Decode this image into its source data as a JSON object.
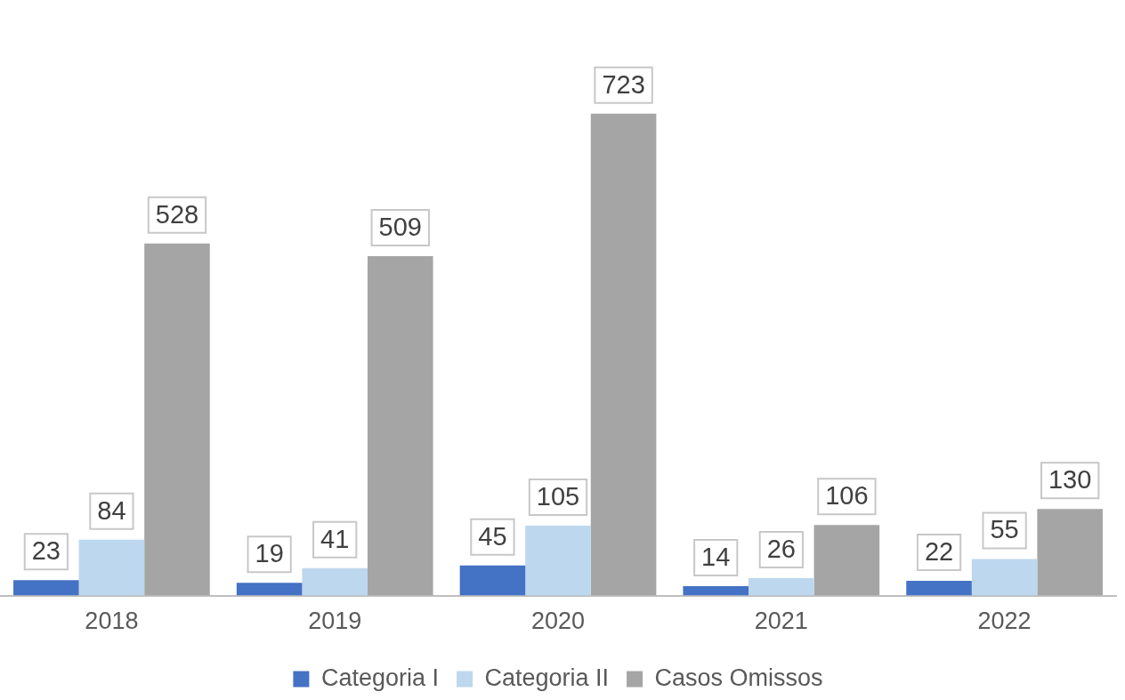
{
  "chart_data": {
    "type": "bar",
    "categories": [
      "2018",
      "2019",
      "2020",
      "2021",
      "2022"
    ],
    "series": [
      {
        "name": "Categoria I",
        "color": "#4472c4",
        "values": [
          23,
          19,
          45,
          14,
          22
        ]
      },
      {
        "name": "Categoria II",
        "color": "#bdd7ee",
        "values": [
          84,
          41,
          105,
          26,
          55
        ]
      },
      {
        "name": "Casos Omissos",
        "color": "#a5a5a5",
        "values": [
          528,
          509,
          723,
          106,
          130
        ]
      }
    ],
    "data_labels": true,
    "legend": "bottom",
    "grid": false
  }
}
